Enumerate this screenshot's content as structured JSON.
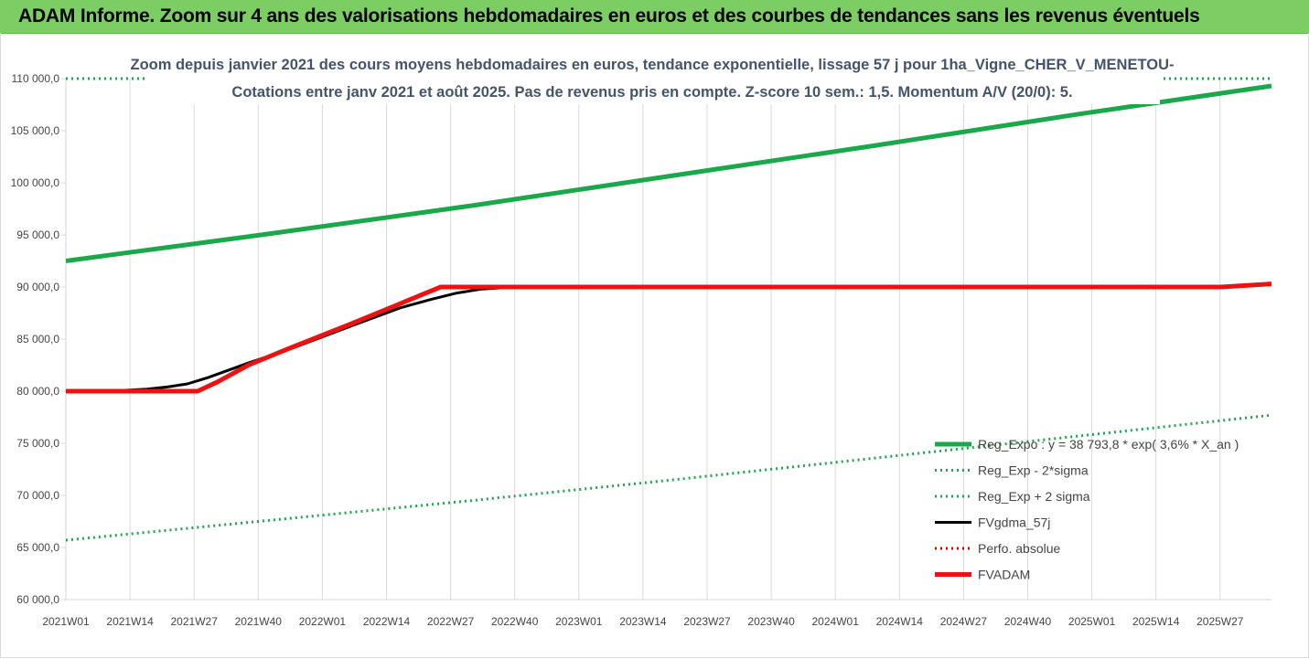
{
  "banner": {
    "title": "ADAM Informe. Zoom sur 4 ans des valorisations hebdomadaires en euros et des courbes de tendances sans les revenus éventuels"
  },
  "chart_data": {
    "type": "line",
    "title": "Zoom depuis janvier 2021 des cours moyens hebdomadaires en euros, tendance exponentielle, lissage 57 j pour 1ha_Vigne_CHER_V_MENETOU-",
    "subtitle": "Cotations entre janv 2021 et août 2025.  Pas de revenus pris en compte. Z-score 10 sem.: 1,5. Momentum A/V (20/0): 5.",
    "xlabel": "",
    "ylabel": "",
    "ylim": [
      60000,
      110000
    ],
    "y_ticks": [
      "60 000,0",
      "65 000,0",
      "70 000,0",
      "75 000,0",
      "80 000,0",
      "85 000,0",
      "90 000,0",
      "95 000,0",
      "100 000,0",
      "105 000,0",
      "110 000,0"
    ],
    "x_ticks": [
      "2021W01",
      "2021W14",
      "2021W27",
      "2021W40",
      "2022W01",
      "2022W14",
      "2022W27",
      "2022W40",
      "2023W01",
      "2023W14",
      "2023W27",
      "2023W40",
      "2024W01",
      "2024W14",
      "2024W27",
      "2024W40",
      "2025W01",
      "2025W14",
      "2025W27"
    ],
    "x_range_weeks": [
      0,
      238
    ],
    "grid": "vertical",
    "legend_position": "bottom-right",
    "series": [
      {
        "name": "Reg_Expo : y = 38 793,8 * exp( 3,6% *  X_an )",
        "color": "#1aa84a",
        "style": "solid-thick",
        "x": [
          0,
          40,
          80,
          120,
          160,
          200,
          238
        ],
        "y": [
          92500,
          95100,
          97800,
          100700,
          103600,
          106600,
          109300
        ]
      },
      {
        "name": "Reg_Exp - 2*sigma",
        "color": "#1aa84a",
        "style": "dotted",
        "x": [
          0,
          40,
          80,
          120,
          160,
          200,
          238
        ],
        "y": [
          65700,
          67600,
          69500,
          71500,
          73600,
          75700,
          77700
        ]
      },
      {
        "name": "Reg_Exp + 2 sigma",
        "color": "#1aa84a",
        "style": "dotted",
        "x": [
          0,
          238
        ],
        "y": [
          110000,
          110000
        ]
      },
      {
        "name": "FVgdma_57j",
        "color": "#000000",
        "style": "solid",
        "x": [
          0,
          8,
          16,
          20,
          24,
          28,
          36,
          44,
          56,
          66,
          72,
          77,
          82,
          87,
          91,
          95,
          100,
          110,
          140,
          180,
          220,
          230,
          238
        ],
        "y": [
          80000,
          80000,
          80200,
          80400,
          80700,
          81300,
          82700,
          84000,
          86200,
          88000,
          88800,
          89400,
          89800,
          89950,
          90000,
          90000,
          90000,
          90000,
          90000,
          90000,
          90000,
          90100,
          90300
        ]
      },
      {
        "name": "Perfo. absolue",
        "color": "#e00000",
        "style": "dotted",
        "x": [],
        "y": []
      },
      {
        "name": "FVADAM",
        "color": "#ee1111",
        "style": "solid-thick",
        "x": [
          0,
          20,
          26,
          30,
          36,
          44,
          56,
          64,
          70,
          74,
          80,
          120,
          160,
          200,
          228,
          238
        ],
        "y": [
          80000,
          80000,
          80000,
          80900,
          82500,
          84100,
          86400,
          88000,
          89200,
          90000,
          90000,
          90000,
          90000,
          90000,
          90000,
          90300
        ]
      }
    ]
  }
}
